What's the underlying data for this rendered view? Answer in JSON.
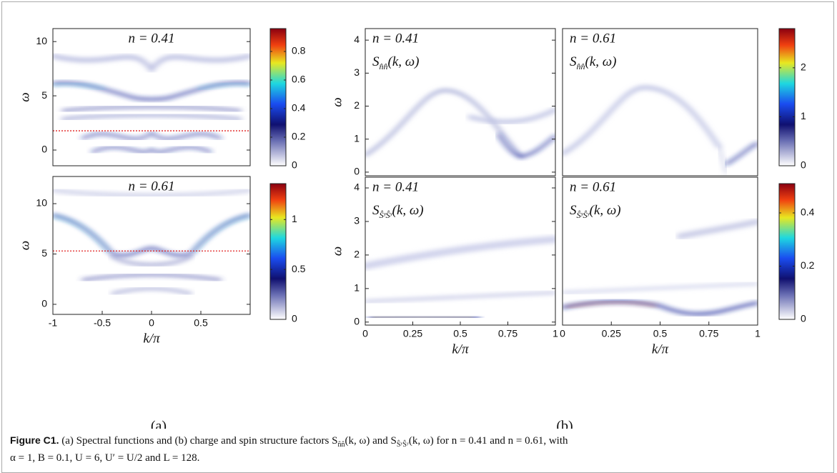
{
  "panels": [
    {
      "annotation": "n = 0.41",
      "ylabel": "ω",
      "ylim": [
        -1.45,
        11.2
      ],
      "yticks": [
        0,
        5,
        10
      ]
    },
    {
      "annotation": "n = 0.61",
      "ylabel": "ω",
      "xlabel": "k/π",
      "ylim": [
        -1,
        12.7
      ],
      "yticks": [
        0,
        5,
        10
      ],
      "xlim": [
        -1,
        1
      ],
      "xticks": [
        -1,
        -0.5,
        0,
        0.5
      ]
    },
    {
      "annotation": "n = 0.41",
      "quantity": {
        "symbol": "S",
        "subscript": "n̂n̂",
        "args": "(k, ω)"
      },
      "ylabel": "ω",
      "ylim": [
        -0.11,
        4.35
      ],
      "yticks": [
        0,
        1,
        2,
        3,
        4
      ]
    },
    {
      "annotation": "n = 0.61",
      "quantity": {
        "symbol": "S",
        "subscript": "n̂n̂",
        "args": "(k, ω)"
      }
    },
    {
      "annotation": "n = 0.41",
      "quantity": {
        "symbol": "S",
        "subscript": "ŜʸŜʸ",
        "args": "(k, ω)"
      },
      "ylabel": "ω",
      "xlabel": "k/π",
      "ylim": [
        -0.09,
        4.32
      ],
      "yticks": [
        0,
        1,
        2,
        3,
        4
      ],
      "xlim": [
        0,
        1
      ],
      "xticks": [
        0,
        0.25,
        0.5,
        0.75,
        1
      ]
    },
    {
      "annotation": "n = 0.61",
      "quantity": {
        "symbol": "S",
        "subscript": "ŜʸŜʸ",
        "args": "(k, ω)"
      },
      "xlabel": "k/π",
      "xlim": [
        0,
        1
      ],
      "xticks": [
        0,
        0.25,
        0.5,
        0.75,
        1
      ]
    }
  ],
  "colorbars": [
    {
      "clim": [
        0,
        0.96
      ],
      "ticks": [
        0,
        0.2,
        0.4,
        0.6,
        0.8
      ]
    },
    {
      "clim": [
        0,
        1.36
      ],
      "ticks": [
        0,
        0.5,
        1
      ]
    },
    {
      "clim": [
        0,
        2.8
      ],
      "ticks": [
        0,
        1,
        2
      ]
    },
    {
      "clim": [
        0,
        0.51
      ],
      "ticks": [
        0,
        0.2,
        0.4
      ]
    }
  ],
  "panel_labels": [
    "(a)",
    "(b)"
  ],
  "caption": {
    "label": "Figure C1.",
    "parts": [
      "(a) Spectral functions and (b) charge and spin structure factors S",
      "n̂n̂",
      "(k, ω) and S",
      "ŜʸŜʸ",
      "(k, ω) for n = 0.41 and n = 0.61, with",
      "α = 1, B = 0.1, U = 6, U′ = U/2 and L = 128."
    ]
  }
}
